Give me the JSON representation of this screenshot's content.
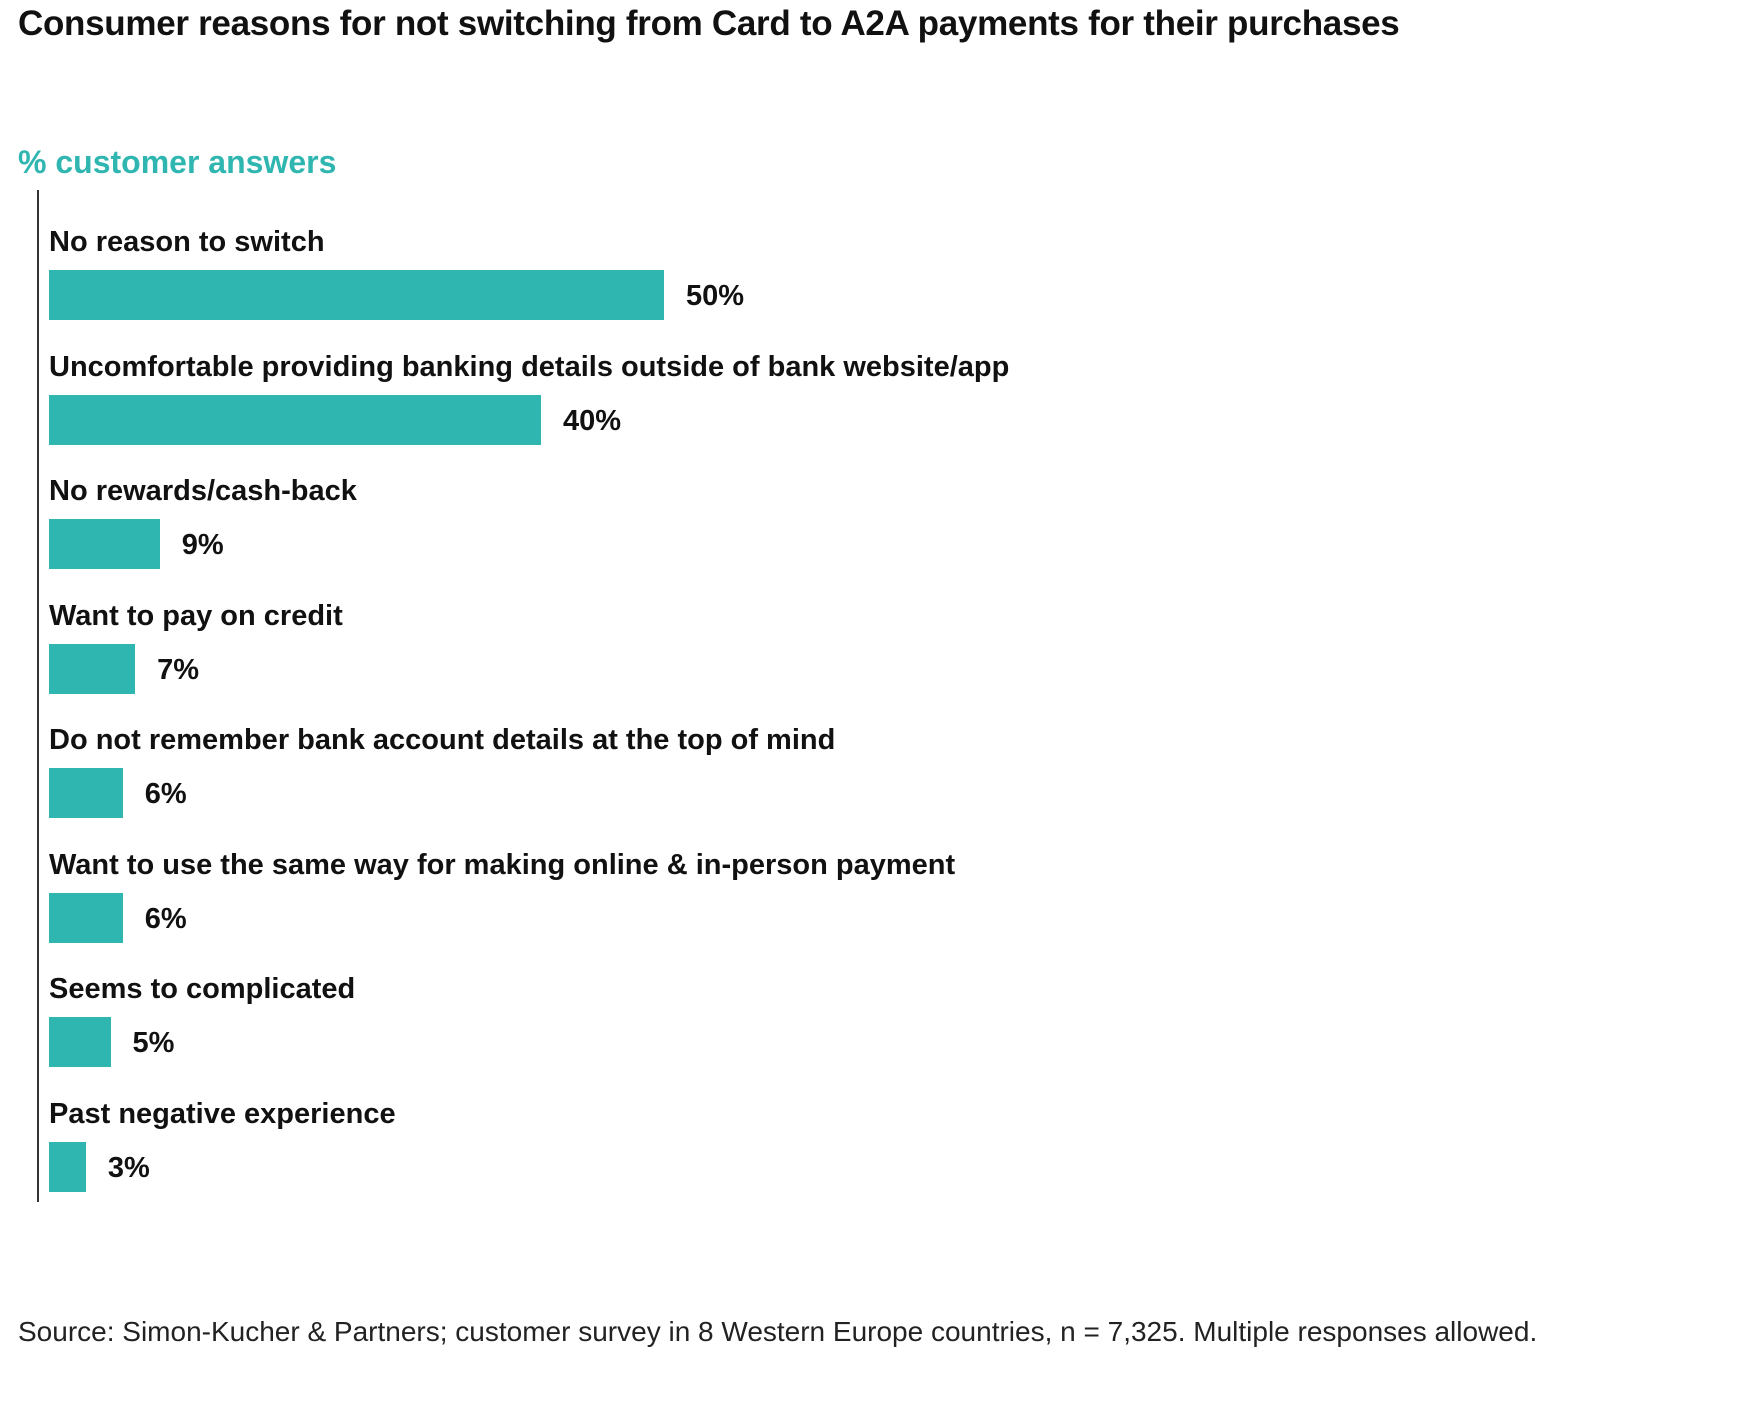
{
  "chart_data": {
    "type": "bar",
    "orientation": "horizontal",
    "title": "Consumer reasons for not switching from Card to A2A payments for their purchases",
    "subtitle": "% customer answers",
    "categories": [
      "No reason to switch",
      "Uncomfortable providing banking details outside of bank website/app",
      "No rewards/cash-back",
      "Want to pay on credit",
      "Do not remember bank account details at the top of mind",
      "Want to use the same way for making online & in-person payment",
      "Seems to complicated",
      "Past negative experience"
    ],
    "values": [
      50,
      40,
      9,
      7,
      6,
      6,
      5,
      3
    ],
    "value_labels": [
      "50%",
      "40%",
      "9%",
      "7%",
      "6%",
      "6%",
      "5%",
      "3%"
    ],
    "unit": "%",
    "grid": false,
    "legend": "none"
  },
  "colors": {
    "bar": "#2fb6b0",
    "subtitle": "#2fb6b0",
    "text": "#111111"
  },
  "footer": {
    "source": "Source: Simon-Kucher & Partners; customer survey in 8 Western Europe countries, n = 7,325. Multiple responses allowed."
  }
}
